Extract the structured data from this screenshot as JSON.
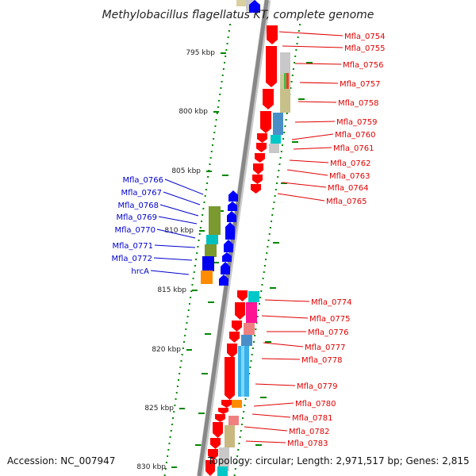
{
  "title": "Methylobacillus flagellatus KT, complete genome",
  "footer": {
    "accession": "Accession: NC_007947",
    "summary": "Topology: circular; Length: 2,971,517 bp; Genes: 2,815"
  },
  "kbp_ticks": [
    "795 kbp",
    "800 kbp",
    "805 kbp",
    "810 kbp",
    "815 kbp",
    "820 kbp",
    "825 kbp",
    "830 kbp"
  ],
  "reverse_strand_genes": [
    "Mfla_0754",
    "Mfla_0755",
    "Mfla_0756",
    "Mfla_0757",
    "Mfla_0758",
    "Mfla_0759",
    "Mfla_0760",
    "Mfla_0761",
    "Mfla_0762",
    "Mfla_0763",
    "Mfla_0764",
    "Mfla_0765",
    "Mfla_0774",
    "Mfla_0775",
    "Mfla_0776",
    "Mfla_0777",
    "Mfla_0778",
    "Mfla_0779",
    "Mfla_0780",
    "Mfla_0781",
    "Mfla_0782",
    "Mfla_0783"
  ],
  "forward_strand_genes": [
    "Mfla_0766",
    "Mfla_0767",
    "Mfla_0768",
    "Mfla_0769",
    "Mfla_0770",
    "Mfla_0771",
    "Mfla_0772",
    "hrcA"
  ],
  "colors": {
    "reverse_gene": "#ff0000",
    "forward_gene": "#0000ff",
    "backbone": "#888888",
    "tick_marks": "#008800",
    "reverse_label": "#e00000",
    "forward_label": "#0000cc"
  }
}
